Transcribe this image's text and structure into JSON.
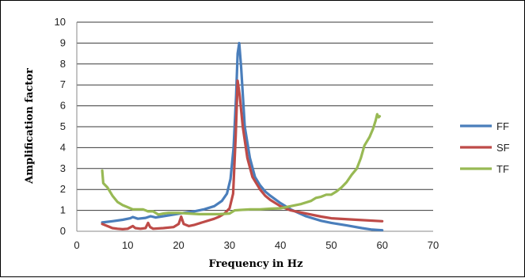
{
  "chart_data": {
    "type": "line",
    "xlabel": "Frequency in Hz",
    "ylabel": "Amplification factor",
    "xlim": [
      0,
      70
    ],
    "ylim": [
      0,
      10
    ],
    "xticks": [
      0,
      10,
      20,
      30,
      40,
      50,
      60,
      70
    ],
    "yticks": [
      0,
      1,
      2,
      3,
      4,
      5,
      6,
      7,
      8,
      9,
      10
    ],
    "grid": "horizontal",
    "legend": "right",
    "series": [
      {
        "name": "FF",
        "color": "#4a7ebb",
        "points": [
          [
            5,
            0.42
          ],
          [
            7,
            0.48
          ],
          [
            9,
            0.55
          ],
          [
            10.5,
            0.62
          ],
          [
            11,
            0.68
          ],
          [
            12,
            0.6
          ],
          [
            13.5,
            0.64
          ],
          [
            14.5,
            0.72
          ],
          [
            15.5,
            0.66
          ],
          [
            17,
            0.72
          ],
          [
            19,
            0.8
          ],
          [
            21,
            0.88
          ],
          [
            23,
            0.95
          ],
          [
            25,
            1.05
          ],
          [
            27,
            1.2
          ],
          [
            28.5,
            1.45
          ],
          [
            29.5,
            1.8
          ],
          [
            30.2,
            2.5
          ],
          [
            30.8,
            4.0
          ],
          [
            31.3,
            6.5
          ],
          [
            31.6,
            8.5
          ],
          [
            31.9,
            9.0
          ],
          [
            32.3,
            7.8
          ],
          [
            33,
            5.0
          ],
          [
            34,
            3.5
          ],
          [
            35,
            2.6
          ],
          [
            36,
            2.2
          ],
          [
            37,
            1.9
          ],
          [
            38,
            1.7
          ],
          [
            40,
            1.35
          ],
          [
            42,
            1.05
          ],
          [
            45,
            0.72
          ],
          [
            48,
            0.5
          ],
          [
            50,
            0.4
          ],
          [
            53,
            0.28
          ],
          [
            56,
            0.15
          ],
          [
            58,
            0.08
          ],
          [
            60,
            0.05
          ]
        ]
      },
      {
        "name": "SF",
        "color": "#be4b48",
        "points": [
          [
            5,
            0.35
          ],
          [
            6,
            0.25
          ],
          [
            7,
            0.15
          ],
          [
            8,
            0.12
          ],
          [
            9,
            0.1
          ],
          [
            10,
            0.12
          ],
          [
            11,
            0.25
          ],
          [
            11.5,
            0.15
          ],
          [
            12.5,
            0.12
          ],
          [
            13.5,
            0.15
          ],
          [
            14,
            0.4
          ],
          [
            14.4,
            0.2
          ],
          [
            15,
            0.12
          ],
          [
            17,
            0.15
          ],
          [
            19,
            0.2
          ],
          [
            20,
            0.35
          ],
          [
            20.5,
            0.7
          ],
          [
            21,
            0.35
          ],
          [
            22,
            0.25
          ],
          [
            23,
            0.3
          ],
          [
            25,
            0.45
          ],
          [
            27,
            0.6
          ],
          [
            28,
            0.7
          ],
          [
            29,
            0.85
          ],
          [
            30,
            1.1
          ],
          [
            30.7,
            1.8
          ],
          [
            31.2,
            4.5
          ],
          [
            31.6,
            7.2
          ],
          [
            32,
            6.5
          ],
          [
            32.6,
            5.0
          ],
          [
            33.5,
            3.5
          ],
          [
            34.5,
            2.6
          ],
          [
            36,
            2.0
          ],
          [
            37,
            1.7
          ],
          [
            38,
            1.5
          ],
          [
            40,
            1.2
          ],
          [
            42,
            1.0
          ],
          [
            45,
            0.85
          ],
          [
            48,
            0.7
          ],
          [
            50,
            0.62
          ],
          [
            55,
            0.55
          ],
          [
            60,
            0.48
          ]
        ]
      },
      {
        "name": "TF",
        "color": "#98b954",
        "points": [
          [
            5,
            2.9
          ],
          [
            5.2,
            2.3
          ],
          [
            6,
            2.1
          ],
          [
            7,
            1.7
          ],
          [
            8,
            1.4
          ],
          [
            9,
            1.25
          ],
          [
            10,
            1.15
          ],
          [
            11,
            1.05
          ],
          [
            13,
            1.05
          ],
          [
            14,
            0.95
          ],
          [
            15,
            0.95
          ],
          [
            16,
            0.8
          ],
          [
            17,
            0.85
          ],
          [
            18,
            0.88
          ],
          [
            20,
            0.88
          ],
          [
            22,
            0.85
          ],
          [
            24,
            0.82
          ],
          [
            26,
            0.82
          ],
          [
            28,
            0.82
          ],
          [
            30,
            0.85
          ],
          [
            31,
            1.0
          ],
          [
            32,
            1.02
          ],
          [
            34,
            1.05
          ],
          [
            36,
            1.05
          ],
          [
            38,
            1.08
          ],
          [
            40,
            1.1
          ],
          [
            42,
            1.2
          ],
          [
            44,
            1.3
          ],
          [
            46,
            1.45
          ],
          [
            47,
            1.6
          ],
          [
            48,
            1.65
          ],
          [
            49,
            1.75
          ],
          [
            50,
            1.75
          ],
          [
            51,
            1.9
          ],
          [
            52,
            2.1
          ],
          [
            53,
            2.35
          ],
          [
            54,
            2.7
          ],
          [
            55,
            3.0
          ],
          [
            55.8,
            3.5
          ],
          [
            56.5,
            4.1
          ],
          [
            57.5,
            4.5
          ],
          [
            58.2,
            4.9
          ],
          [
            58.7,
            5.3
          ],
          [
            59,
            5.6
          ],
          [
            59.3,
            5.45
          ],
          [
            59.5,
            5.5
          ]
        ]
      }
    ]
  }
}
